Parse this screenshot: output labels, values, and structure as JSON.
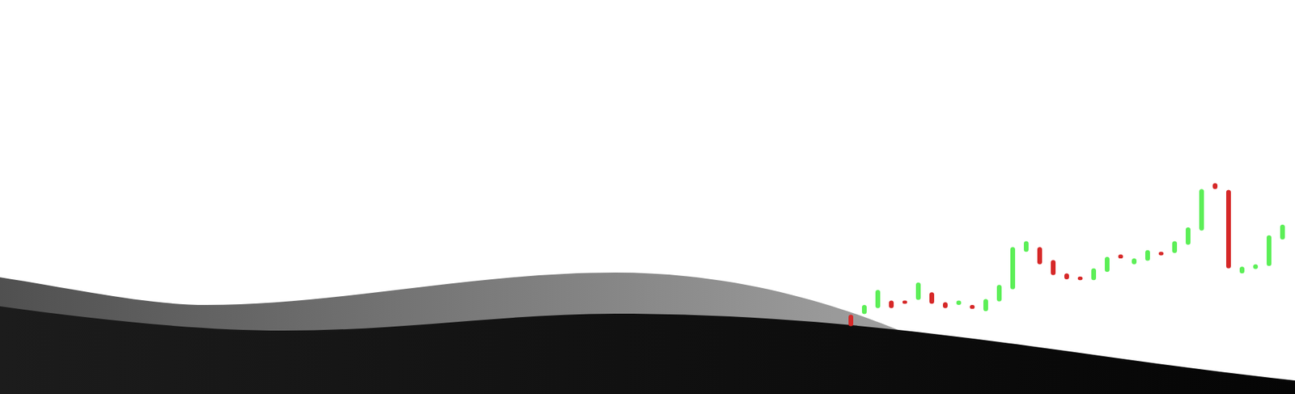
{
  "chart_data": {
    "type": "candlestick",
    "categories": [
      null,
      null,
      null,
      null,
      null,
      null,
      null,
      null,
      null,
      null,
      null,
      null,
      null,
      null,
      null,
      null,
      null,
      null,
      null,
      null,
      null,
      null,
      null,
      null,
      null,
      null,
      null,
      null,
      null,
      null,
      null,
      null,
      null
    ],
    "open": [
      20.1,
      20.3,
      21.8,
      23.7,
      23.7,
      23.9,
      25.8,
      23.3,
      22.6,
      22.6,
      21.0,
      23.5,
      26.6,
      36.1,
      37.3,
      34.0,
      30.6,
      29.8,
      28.9,
      31.0,
      35.4,
      32.9,
      33.8,
      36.1,
      35.8,
      37.9,
      41.5,
      53.5,
      51.8,
      30.6,
      31.7,
      32.5,
      39.2
    ],
    "close": [
      17.2,
      22.6,
      26.4,
      21.8,
      22.9,
      28.3,
      22.9,
      21.8,
      23.7,
      21.6,
      24.1,
      27.7,
      37.3,
      38.8,
      32.9,
      30.2,
      29.1,
      28.9,
      31.9,
      34.8,
      34.4,
      34.4,
      36.5,
      35.2,
      38.8,
      42.3,
      52.0,
      52.0,
      31.9,
      32.3,
      32.9,
      40.3,
      43.0
    ],
    "colors": [
      "#d62828",
      "#5cef57",
      "#5cef57",
      "#d62828",
      "#d62828",
      "#5cef57",
      "#d62828",
      "#d62828",
      "#5cef57",
      "#d62828",
      "#5cef57",
      "#5cef57",
      "#5cef57",
      "#5cef57",
      "#d62828",
      "#d62828",
      "#d62828",
      "#d62828",
      "#5cef57",
      "#5cef57",
      "#d62828",
      "#5cef57",
      "#5cef57",
      "#d62828",
      "#5cef57",
      "#5cef57",
      "#5cef57",
      "#d62828",
      "#d62828",
      "#5cef57",
      "#5cef57",
      "#5cef57",
      "#5cef57"
    ],
    "ylim": [
      0,
      100
    ],
    "tick_labels": false
  }
}
